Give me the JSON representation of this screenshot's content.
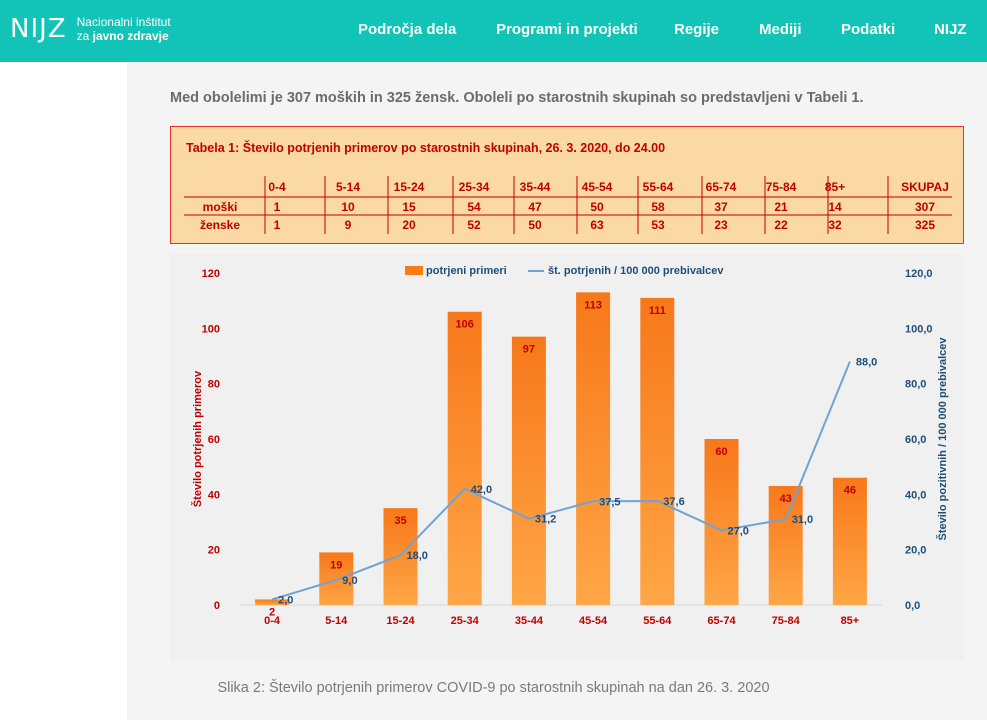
{
  "header": {
    "logo_mark": "NIJZ",
    "logo_line1": "Nacionalni inštitut",
    "logo_line2_prefix": "za ",
    "logo_line2_bold": "javno zdravje",
    "nav": [
      "Področja dela",
      "Programi in projekti",
      "Regije",
      "Mediji",
      "Podatki",
      "NIJZ"
    ]
  },
  "intro": "Med obolelimi je 307 moških in 325 žensk. Oboleli po starostnih skupinah so predstavljeni v Tabeli 1.",
  "table": {
    "title": "Tabela 1: Število potrjenih primerov po starostnih skupinah, 26. 3. 2020, do 24.00",
    "headers": [
      "0-4",
      "5-14",
      "15-24",
      "25-34",
      "35-44",
      "45-54",
      "55-64",
      "65-74",
      "75-84",
      "85+",
      "SKUPAJ"
    ],
    "rows": [
      {
        "label": "moški",
        "values": [
          "1",
          "10",
          "15",
          "54",
          "47",
          "50",
          "58",
          "37",
          "21",
          "14",
          "307"
        ]
      },
      {
        "label": "ženske",
        "values": [
          "1",
          "9",
          "20",
          "52",
          "50",
          "63",
          "53",
          "23",
          "22",
          "32",
          "325"
        ]
      }
    ]
  },
  "chart_data": {
    "type": "bar",
    "categories": [
      "0-4",
      "5-14",
      "15-24",
      "25-34",
      "35-44",
      "45-54",
      "55-64",
      "65-74",
      "75-84",
      "85+"
    ],
    "series": [
      {
        "name": "potrjeni primeri",
        "type": "bar",
        "axis": "left",
        "values": [
          2,
          19,
          35,
          106,
          97,
          113,
          111,
          60,
          43,
          46
        ],
        "color": "#f97d16"
      },
      {
        "name": "št. potrjenih / 100 000 prebivalcev",
        "type": "line",
        "axis": "right",
        "values": [
          2.0,
          9.0,
          18.0,
          42.0,
          31.2,
          37.5,
          37.6,
          27.0,
          31.0,
          88.0
        ],
        "labels": [
          "2,0",
          "9,0",
          "18,0",
          "42,0",
          "31,2",
          "37,5",
          "37,6",
          "27,0",
          "31,0",
          "88,0"
        ],
        "color": "#6fa3d4"
      }
    ],
    "ylabel": "Število potrjenih primerov",
    "y2label": "Število pozitivnih / 100 000 prebivalcev",
    "ylim": [
      0,
      120
    ],
    "y2lim": [
      0,
      120
    ],
    "yticks": [
      "0",
      "20",
      "40",
      "60",
      "80",
      "100",
      "120"
    ],
    "y2ticks": [
      "0,0",
      "20,0",
      "40,0",
      "60,0",
      "80,0",
      "100,0",
      "120,0"
    ],
    "legend": "top",
    "grid": false
  },
  "caption": "Slika 2: Število potrjenih primerov COVID-9 po starostnih skupinah na dan 26. 3. 2020"
}
